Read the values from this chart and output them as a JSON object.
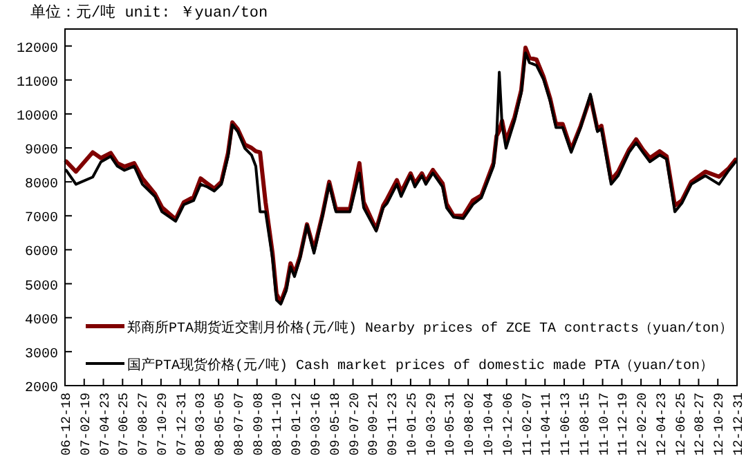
{
  "chart_data": {
    "type": "line",
    "title": "单位：元/吨  unit: ￥yuan/ton",
    "x": [
      "2006-12-22",
      "2007-01-23",
      "2007-03-19",
      "2007-04-15",
      "2007-05-17",
      "2007-06-08",
      "2007-07-01",
      "2007-08-02",
      "2007-08-29",
      "2007-10-09",
      "2007-11-01",
      "2007-12-16",
      "2008-01-12",
      "2008-02-13",
      "2008-03-07",
      "2008-03-29",
      "2008-04-21",
      "2008-05-14",
      "2008-06-05",
      "2008-06-19",
      "2008-07-07",
      "2008-07-30",
      "2008-08-21",
      "2008-09-04",
      "2008-09-18",
      "2008-10-06",
      "2008-10-29",
      "2008-11-11",
      "2008-11-25",
      "2008-12-13",
      "2008-12-27",
      "2009-01-09",
      "2009-01-27",
      "2009-02-19",
      "2009-03-14",
      "2009-04-10",
      "2009-05-03",
      "2009-05-25",
      "2009-07-10",
      "2009-08-10",
      "2009-08-24",
      "2009-10-04",
      "2009-10-27",
      "2009-11-09",
      "2009-12-11",
      "2009-12-25",
      "2010-01-25",
      "2010-02-08",
      "2010-03-03",
      "2010-03-16",
      "2010-04-08",
      "2010-05-10",
      "2010-05-23",
      "2010-06-15",
      "2010-07-17",
      "2010-08-17",
      "2010-09-14",
      "2010-10-24",
      "2010-11-03",
      "2010-11-12",
      "2010-11-21",
      "2010-12-04",
      "2011-01-01",
      "2011-01-23",
      "2011-02-06",
      "2011-02-19",
      "2011-03-14",
      "2011-04-06",
      "2011-04-28",
      "2011-05-17",
      "2011-06-08",
      "2011-07-06",
      "2011-08-06",
      "2011-09-07",
      "2011-09-30",
      "2011-10-13",
      "2011-11-14",
      "2011-12-07",
      "2012-01-12",
      "2012-02-04",
      "2012-02-26",
      "2012-03-20",
      "2012-04-21",
      "2012-05-14",
      "2012-06-10",
      "2012-07-03",
      "2012-08-03",
      "2012-09-18",
      "2012-11-02",
      "2012-12-04",
      "2012-12-26"
    ],
    "series": [
      {
        "name": "郑商所PTA期货近交割月价格(元/吨) Nearby prices of ZCE TA contracts（yuan/ton）",
        "color": "#800000",
        "values": [
          8600,
          8300,
          8870,
          8700,
          8850,
          8550,
          8450,
          8550,
          8100,
          7650,
          7250,
          6900,
          7400,
          7550,
          8100,
          7950,
          7800,
          8000,
          8850,
          9750,
          9550,
          9100,
          9000,
          8900,
          8870,
          7400,
          5900,
          4700,
          4450,
          4900,
          5600,
          5300,
          5800,
          6750,
          6000,
          7000,
          8000,
          7200,
          7200,
          8550,
          7400,
          6600,
          7300,
          7500,
          8050,
          7700,
          8250,
          7950,
          8250,
          8000,
          8350,
          7950,
          7350,
          7000,
          7000,
          7450,
          7600,
          8550,
          9350,
          9500,
          9800,
          9200,
          9900,
          10700,
          11950,
          11650,
          11600,
          11100,
          10450,
          9700,
          9700,
          8950,
          9650,
          10500,
          9550,
          9650,
          8050,
          8300,
          8950,
          9250,
          8950,
          8700,
          8900,
          8750,
          7300,
          7450,
          8000,
          8300,
          8150,
          8400,
          8650
        ]
      },
      {
        "name": "国产PTA现货价格(元/吨) Cash market prices of domestic made PTA（yuan/ton）",
        "color": "#000000",
        "values": [
          8340,
          7930,
          8140,
          8590,
          8750,
          8460,
          8340,
          8460,
          7930,
          7570,
          7120,
          6840,
          7330,
          7450,
          7930,
          7850,
          7730,
          7930,
          8750,
          9680,
          9480,
          8990,
          8790,
          8460,
          7120,
          7120,
          5740,
          4520,
          4400,
          4800,
          5500,
          5210,
          5740,
          6720,
          5900,
          6960,
          7930,
          7120,
          7120,
          8260,
          7240,
          6550,
          7240,
          7370,
          7930,
          7570,
          8180,
          7850,
          8180,
          7930,
          8260,
          7850,
          7240,
          6960,
          6920,
          7330,
          7530,
          8460,
          9280,
          11230,
          9680,
          8990,
          9800,
          10620,
          11800,
          11510,
          11430,
          11020,
          10370,
          9600,
          9600,
          8870,
          9600,
          10580,
          9480,
          9560,
          7930,
          8180,
          8870,
          9150,
          8870,
          8590,
          8790,
          8670,
          7120,
          7370,
          7930,
          8180,
          7930,
          8340,
          8590
        ]
      }
    ],
    "xlim": [
      "2006-12-18",
      "2012-12-31"
    ],
    "xticks": [
      {
        "value": "2006-12-18",
        "label": "06-12-18"
      },
      {
        "value": "2007-02-19",
        "label": "07-02-19"
      },
      {
        "value": "2007-04-23",
        "label": "07-04-23"
      },
      {
        "value": "2007-06-25",
        "label": "07-06-25"
      },
      {
        "value": "2007-08-27",
        "label": "07-08-27"
      },
      {
        "value": "2007-10-29",
        "label": "07-10-29"
      },
      {
        "value": "2007-12-31",
        "label": "07-12-31"
      },
      {
        "value": "2008-03-03",
        "label": "08-03-03"
      },
      {
        "value": "2008-05-05",
        "label": "08-05-05"
      },
      {
        "value": "2008-07-07",
        "label": "08-07-07"
      },
      {
        "value": "2008-09-08",
        "label": "08-09-08"
      },
      {
        "value": "2008-11-10",
        "label": "08-11-10"
      },
      {
        "value": "2009-01-12",
        "label": "09-01-12"
      },
      {
        "value": "2009-03-16",
        "label": "09-03-16"
      },
      {
        "value": "2009-05-18",
        "label": "09-05-18"
      },
      {
        "value": "2009-07-20",
        "label": "09-07-20"
      },
      {
        "value": "2009-09-21",
        "label": "09-09-21"
      },
      {
        "value": "2009-11-23",
        "label": "09-11-23"
      },
      {
        "value": "2010-01-25",
        "label": "10-01-25"
      },
      {
        "value": "2010-03-29",
        "label": "10-03-29"
      },
      {
        "value": "2010-05-31",
        "label": "10-05-31"
      },
      {
        "value": "2010-08-02",
        "label": "10-08-02"
      },
      {
        "value": "2010-10-04",
        "label": "10-10-04"
      },
      {
        "value": "2010-12-06",
        "label": "10-12-06"
      },
      {
        "value": "2011-02-07",
        "label": "11-02-07"
      },
      {
        "value": "2011-04-11",
        "label": "11-04-11"
      },
      {
        "value": "2011-06-13",
        "label": "11-06-13"
      },
      {
        "value": "2011-08-15",
        "label": "11-08-15"
      },
      {
        "value": "2011-10-17",
        "label": "11-10-17"
      },
      {
        "value": "2011-12-19",
        "label": "11-12-19"
      },
      {
        "value": "2012-02-20",
        "label": "12-02-20"
      },
      {
        "value": "2012-04-23",
        "label": "12-04-23"
      },
      {
        "value": "2012-06-25",
        "label": "12-06-25"
      },
      {
        "value": "2012-08-27",
        "label": "12-08-27"
      },
      {
        "value": "2012-10-29",
        "label": "12-10-29"
      },
      {
        "value": "2012-12-31",
        "label": "12-12-31"
      }
    ],
    "ylim": [
      2000,
      12500
    ],
    "yticks": [
      2000,
      3000,
      4000,
      5000,
      6000,
      7000,
      8000,
      9000,
      10000,
      11000,
      12000
    ],
    "grid": false,
    "legend": "bottom left",
    "marker": "none",
    "line_style": "solid"
  }
}
